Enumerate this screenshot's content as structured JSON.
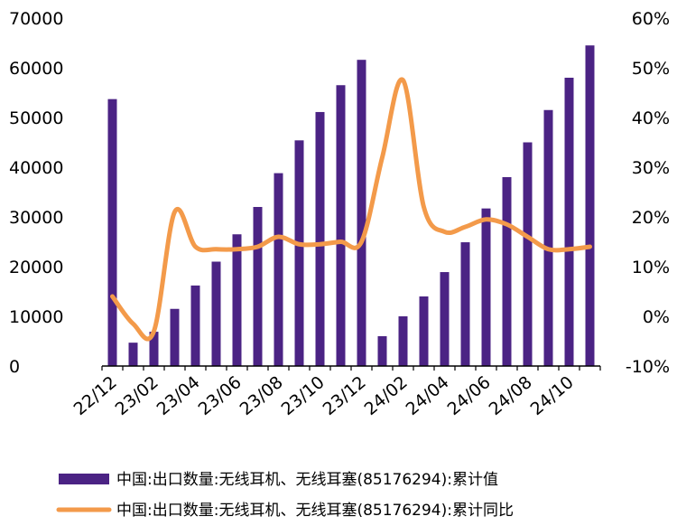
{
  "chart_data": {
    "type": "bar",
    "categories": [
      "22/12",
      "23/01",
      "23/02",
      "23/03",
      "23/04",
      "23/05",
      "23/06",
      "23/07",
      "23/08",
      "23/09",
      "23/10",
      "23/11",
      "23/12",
      "24/01",
      "24/02",
      "24/03",
      "24/04",
      "24/05",
      "24/06",
      "24/07",
      "24/08",
      "24/09",
      "24/10",
      "24/11"
    ],
    "x_tick_labels": [
      "22/12",
      "23/02",
      "23/04",
      "23/06",
      "23/08",
      "23/10",
      "23/12",
      "24/02",
      "24/04",
      "24/06",
      "24/08",
      "24/10"
    ],
    "series": [
      {
        "name": "中国:出口数量:无线耳机、无线耳塞(85176294):累计值",
        "type": "bar",
        "axis": "left",
        "color": "#4B2384",
        "values": [
          53700,
          4700,
          6900,
          11500,
          16200,
          21000,
          26500,
          32000,
          38800,
          45400,
          51100,
          56500,
          61600,
          6000,
          10000,
          14000,
          18900,
          24900,
          31700,
          38000,
          45000,
          51500,
          58000,
          64500
        ]
      },
      {
        "name": "中国:出口数量:无线耳机、无线耳塞(85176294):累计同比",
        "type": "line",
        "axis": "right",
        "color": "#F39A4A",
        "values": [
          4.0,
          -1.5,
          -3.0,
          21.0,
          14.0,
          13.5,
          13.5,
          14.0,
          16.0,
          14.5,
          14.5,
          15.0,
          15.0,
          32.0,
          47.5,
          22.0,
          17.0,
          18.0,
          19.5,
          18.5,
          16.0,
          13.5,
          13.5,
          14.0
        ]
      }
    ],
    "y_left": {
      "ylim": [
        0,
        70000
      ],
      "ticks": [
        "0",
        "10000",
        "20000",
        "30000",
        "40000",
        "50000",
        "60000",
        "70000"
      ]
    },
    "y_right": {
      "ylim": [
        -10,
        60
      ],
      "ticks": [
        "-10%",
        "0%",
        "10%",
        "20%",
        "30%",
        "40%",
        "50%",
        "60%"
      ]
    },
    "legend_position": "bottom",
    "grid": false
  }
}
